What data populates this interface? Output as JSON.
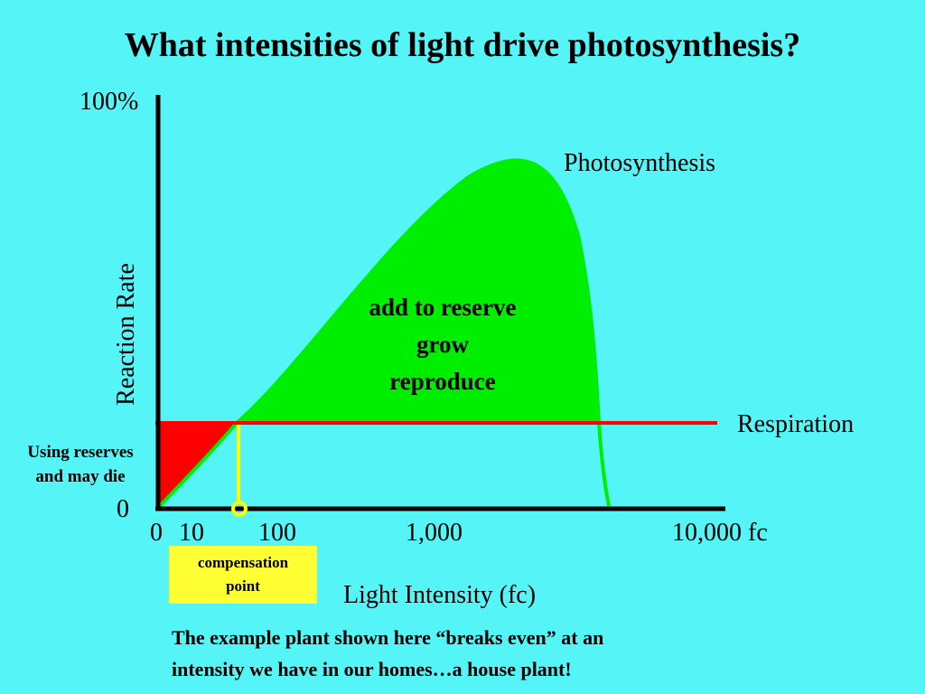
{
  "title": "What intensities of light drive photosynthesis?",
  "chart_data": {
    "type": "area",
    "xlabel": "Light Intensity (fc)",
    "ylabel": "Reaction Rate",
    "y_top_label": "100%",
    "y_zero_label": "0",
    "x_ticks": [
      "0",
      "10",
      "100",
      "1,000",
      "10,000 fc"
    ],
    "series": [
      {
        "name": "Photosynthesis",
        "color": "#00ee00"
      },
      {
        "name": "Respiration",
        "color": "#ff0000"
      }
    ],
    "compensation_marker_color": "#ffff00",
    "grid": false
  },
  "annotations": {
    "surplus_lines": [
      "add to reserve",
      "grow",
      "reproduce"
    ],
    "deficit_lines": [
      "Using reserves",
      "and may die"
    ],
    "compensation_lines": [
      "compensation",
      "point"
    ]
  },
  "footer_lines": [
    "The example plant shown here “breaks even” at an",
    "intensity we have in our homes…a house plant!"
  ]
}
